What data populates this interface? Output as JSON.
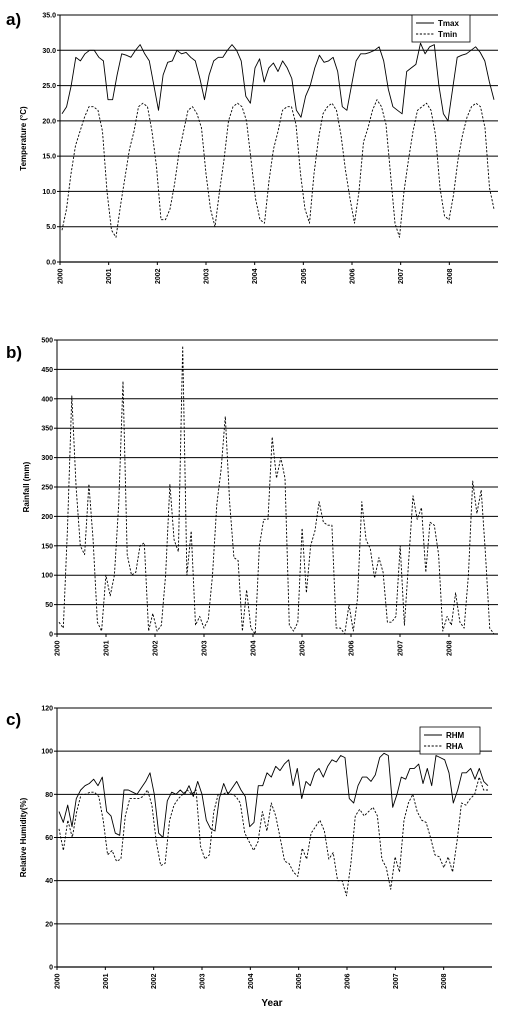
{
  "xlabel": "Year",
  "chart_data": [
    {
      "panel": "a)",
      "type": "line",
      "ylabel": "Temperature (°C)",
      "ylim": [
        0,
        35
      ],
      "yticks": [
        "0.0",
        "5.0",
        "10.0",
        "15.0",
        "20.0",
        "25.0",
        "30.0",
        "35.0"
      ],
      "yticks_values": [
        0,
        5,
        10,
        15,
        20,
        25,
        30,
        35
      ],
      "xlim": [
        2000,
        2009
      ],
      "xticks": [
        "2000",
        "2001",
        "2002",
        "2003",
        "2004",
        "2005",
        "2006",
        "2007",
        "2008"
      ],
      "grid": true,
      "legend": "top-right",
      "series": [
        {
          "name": "Tmax",
          "style": "solid",
          "values": [
            21.0,
            22.0,
            25.0,
            29.0,
            28.5,
            29.5,
            30.0,
            30.0,
            29.0,
            28.5,
            23.0,
            23.0,
            26.5,
            29.5,
            29.3,
            29.0,
            30.0,
            30.8,
            29.5,
            28.5,
            25.0,
            21.5,
            26.5,
            28.3,
            28.5,
            30.0,
            29.5,
            29.7,
            29.0,
            28.5,
            26.0,
            23.0,
            26.5,
            28.5,
            29.0,
            29.0,
            30.0,
            30.8,
            30.0,
            28.5,
            23.5,
            22.5,
            27.5,
            28.8,
            25.5,
            27.5,
            28.2,
            27.0,
            28.5,
            27.5,
            26.0,
            21.5,
            20.5,
            23.5,
            25.0,
            27.5,
            29.3,
            28.3,
            28.5,
            29.0,
            27.0,
            22.0,
            21.5,
            25.0,
            28.5,
            29.5,
            29.5,
            29.7,
            30.0,
            30.5,
            28.5,
            24.5,
            22.0,
            21.5,
            21.0,
            27.0,
            27.5,
            28.0,
            31.0,
            29.5,
            30.5,
            30.8,
            25.0,
            21.0,
            20.0,
            24.5,
            29.0,
            29.3,
            29.5,
            30.0,
            30.5,
            29.7,
            28.5,
            25.5,
            23.0
          ]
        },
        {
          "name": "Tmin",
          "style": "dashed",
          "values": [
            4.5,
            7.5,
            12.5,
            16.5,
            18.5,
            20.5,
            22.0,
            22.0,
            21.5,
            18.5,
            10.0,
            4.5,
            3.5,
            8.0,
            12.0,
            16.0,
            18.5,
            22.0,
            22.5,
            22.0,
            18.5,
            13.5,
            6.0,
            6.0,
            7.5,
            11.0,
            15.5,
            18.5,
            21.5,
            22.0,
            21.0,
            19.0,
            12.5,
            7.5,
            5.0,
            10.0,
            14.5,
            20.0,
            22.0,
            22.5,
            22.0,
            20.0,
            14.5,
            9.0,
            6.0,
            5.5,
            11.5,
            16.0,
            18.5,
            21.5,
            22.0,
            22.0,
            19.5,
            12.5,
            7.5,
            5.5,
            12.5,
            17.5,
            21.0,
            22.0,
            22.5,
            21.5,
            18.0,
            13.0,
            9.0,
            5.5,
            10.0,
            17.0,
            19.0,
            21.5,
            23.0,
            22.0,
            19.5,
            12.5,
            5.5,
            3.5,
            10.0,
            14.5,
            18.5,
            21.5,
            22.0,
            22.5,
            21.5,
            18.0,
            10.5,
            6.5,
            6.0,
            9.5,
            14.5,
            18.0,
            20.5,
            22.0,
            22.5,
            22.0,
            19.0,
            10.5,
            7.5
          ]
        }
      ]
    },
    {
      "panel": "b)",
      "type": "line",
      "ylabel": "Rainfall (mm)",
      "ylim": [
        0,
        500
      ],
      "yticks": [
        "0",
        "50",
        "100",
        "150",
        "200",
        "250",
        "300",
        "350",
        "400",
        "450",
        "500"
      ],
      "yticks_values": [
        0,
        50,
        100,
        150,
        200,
        250,
        300,
        350,
        400,
        450,
        500
      ],
      "xlim": [
        2000,
        2009
      ],
      "xticks": [
        "2000",
        "2001",
        "2002",
        "2003",
        "2004",
        "2005",
        "2006",
        "2007",
        "2008"
      ],
      "grid": true,
      "series": [
        {
          "name": "",
          "style": "dashed",
          "values": [
            20,
            10,
            180,
            405,
            250,
            150,
            135,
            255,
            160,
            20,
            5,
            100,
            65,
            100,
            220,
            430,
            135,
            100,
            105,
            150,
            155,
            5,
            35,
            5,
            15,
            100,
            255,
            160,
            140,
            490,
            100,
            175,
            15,
            30,
            10,
            25,
            100,
            220,
            280,
            370,
            225,
            130,
            125,
            5,
            75,
            10,
            0,
            150,
            195,
            195,
            335,
            265,
            300,
            265,
            15,
            5,
            20,
            180,
            70,
            150,
            175,
            225,
            190,
            185,
            185,
            10,
            10,
            0,
            50,
            5,
            60,
            225,
            160,
            145,
            95,
            130,
            105,
            20,
            20,
            30,
            150,
            15,
            125,
            235,
            195,
            215,
            105,
            190,
            185,
            135,
            5,
            30,
            15,
            70,
            20,
            10,
            100,
            260,
            205,
            245,
            135,
            10,
            0
          ]
        }
      ]
    },
    {
      "panel": "c)",
      "type": "line",
      "ylabel": "Relative Humidity(%)",
      "ylim": [
        0,
        120
      ],
      "yticks": [
        "0",
        "20",
        "40",
        "60",
        "80",
        "100",
        "120"
      ],
      "yticks_values": [
        0,
        20,
        40,
        60,
        80,
        100,
        120
      ],
      "xlim": [
        2000,
        2009
      ],
      "xticks": [
        "2000",
        "2001",
        "2002",
        "2003",
        "2004",
        "2005",
        "2006",
        "2007",
        "2008"
      ],
      "grid": true,
      "legend": "top-right",
      "series": [
        {
          "name": "RHM",
          "style": "solid",
          "values": [
            72,
            67,
            75,
            65,
            78,
            82,
            84,
            85,
            87,
            84,
            88,
            72,
            70,
            62,
            61,
            82,
            82,
            81,
            80,
            83,
            86,
            90,
            80,
            62,
            60,
            77,
            81,
            80,
            82,
            80,
            84,
            79,
            86,
            80,
            68,
            64,
            63,
            78,
            85,
            80,
            83,
            86,
            82,
            79,
            65,
            67,
            84,
            84,
            90,
            88,
            93,
            91,
            94,
            96,
            84,
            92,
            78,
            86,
            84,
            90,
            92,
            88,
            93,
            96,
            95,
            98,
            97,
            78,
            76,
            84,
            88,
            88,
            86,
            89,
            97,
            99,
            98,
            74,
            80,
            88,
            87,
            92,
            92,
            94,
            85,
            92,
            84,
            98,
            97,
            96,
            90,
            76,
            82,
            90,
            90,
            92,
            87,
            92,
            86,
            84
          ]
        },
        {
          "name": "RHA",
          "style": "dashed",
          "values": [
            64,
            54,
            68,
            60,
            72,
            80,
            80,
            81,
            81,
            79,
            68,
            52,
            54,
            49,
            50,
            70,
            78,
            78,
            78,
            79,
            82,
            75,
            58,
            47,
            48,
            68,
            75,
            78,
            80,
            82,
            80,
            82,
            56,
            50,
            52,
            72,
            80,
            80,
            81,
            80,
            79,
            76,
            62,
            58,
            54,
            58,
            72,
            63,
            76,
            70,
            60,
            49,
            48,
            44,
            42,
            55,
            50,
            62,
            65,
            68,
            63,
            50,
            53,
            40,
            40,
            33,
            48,
            70,
            73,
            70,
            72,
            74,
            70,
            50,
            46,
            36,
            51,
            44,
            68,
            76,
            80,
            72,
            68,
            67,
            60,
            52,
            51,
            46,
            51,
            44,
            58,
            76,
            75,
            78,
            80,
            88,
            82,
            82
          ]
        }
      ]
    }
  ]
}
